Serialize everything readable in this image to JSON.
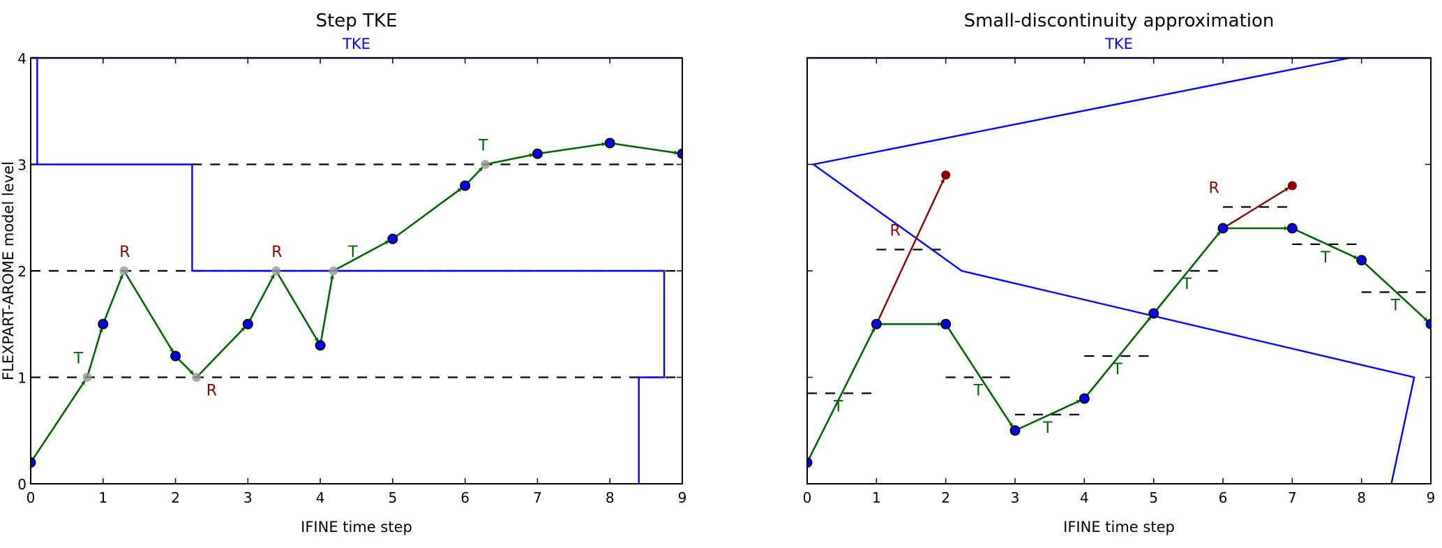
{
  "colors": {
    "tke": "#0000ff",
    "transport": "#006400",
    "random": "#8b0000",
    "point": "#0000ff",
    "crossing": "#999999",
    "level": "#000000"
  },
  "chart_data": [
    {
      "type": "line",
      "title": "Step TKE",
      "subtitle": "TKE",
      "xlabel": "IFINE time step",
      "ylabel": "FLEXPART-AROME model level",
      "xlim": [
        0,
        9
      ],
      "ylim": [
        0,
        4
      ],
      "xticks": [
        "0",
        "1",
        "2",
        "3",
        "4",
        "5",
        "6",
        "7",
        "8",
        "9"
      ],
      "yticks": [
        "0",
        "1",
        "2",
        "3",
        "4"
      ],
      "show_ytick_labels": true,
      "tke_lines": [
        [
          [
            8.4,
            0
          ],
          [
            8.4,
            1
          ],
          [
            8.75,
            1
          ],
          [
            8.75,
            2
          ],
          [
            2.23,
            2
          ],
          [
            2.23,
            3
          ],
          [
            0,
            3
          ]
        ],
        [
          [
            0.09,
            3
          ],
          [
            0.09,
            4
          ],
          [
            0,
            4
          ]
        ],
        [
          [
            0,
            4
          ],
          [
            9,
            4
          ]
        ]
      ],
      "level_lines": [
        {
          "y": 1,
          "x": [
            0,
            9
          ]
        },
        {
          "y": 2,
          "x": [
            0,
            9
          ]
        },
        {
          "y": 3,
          "x": [
            2.23,
            9
          ]
        }
      ],
      "path": [
        {
          "x": 0,
          "y": 0.2,
          "kind": "step"
        },
        {
          "x": 0.78,
          "y": 1,
          "kind": "crossing"
        },
        {
          "x": 1,
          "y": 1.5,
          "kind": "step"
        },
        {
          "x": 1.29,
          "y": 2,
          "kind": "crossing"
        },
        {
          "x": 2,
          "y": 1.2,
          "kind": "step"
        },
        {
          "x": 2.29,
          "y": 1,
          "kind": "crossing"
        },
        {
          "x": 3,
          "y": 1.5,
          "kind": "step"
        },
        {
          "x": 3.39,
          "y": 2,
          "kind": "crossing"
        },
        {
          "x": 4,
          "y": 1.3,
          "kind": "step"
        },
        {
          "x": 4.18,
          "y": 2,
          "kind": "crossing"
        },
        {
          "x": 5,
          "y": 2.3,
          "kind": "step"
        },
        {
          "x": 6,
          "y": 2.8,
          "kind": "step"
        },
        {
          "x": 6.28,
          "y": 3,
          "kind": "crossing"
        },
        {
          "x": 7,
          "y": 3.1,
          "kind": "step"
        },
        {
          "x": 8,
          "y": 3.2,
          "kind": "step"
        },
        {
          "x": 9,
          "y": 3.1,
          "kind": "step"
        }
      ],
      "random_arrows": [],
      "annotations": [
        {
          "text": "T",
          "x": 0.66,
          "y": 1.13,
          "type": "transport"
        },
        {
          "text": "R",
          "x": 1.3,
          "y": 2.13,
          "type": "random"
        },
        {
          "text": "R",
          "x": 2.5,
          "y": 0.83,
          "type": "random"
        },
        {
          "text": "R",
          "x": 3.4,
          "y": 2.13,
          "type": "random"
        },
        {
          "text": "T",
          "x": 4.45,
          "y": 2.13,
          "type": "transport"
        },
        {
          "text": "T",
          "x": 6.25,
          "y": 3.13,
          "type": "transport"
        }
      ]
    },
    {
      "type": "line",
      "title": "Small-discontinuity approximation",
      "subtitle": "TKE",
      "xlabel": "IFINE time step",
      "ylabel": "",
      "xlim": [
        0,
        9
      ],
      "ylim": [
        0,
        4
      ],
      "xticks": [
        "0",
        "1",
        "2",
        "3",
        "4",
        "5",
        "6",
        "7",
        "8",
        "9"
      ],
      "yticks": [
        "0",
        "1",
        "2",
        "3",
        "4"
      ],
      "show_ytick_labels": false,
      "tke_lines": [
        [
          [
            7.83,
            4
          ],
          [
            0.09,
            3
          ],
          [
            2.23,
            2
          ],
          [
            8.76,
            1
          ],
          [
            8.43,
            0
          ]
        ],
        [
          [
            0,
            4
          ],
          [
            9,
            4
          ]
        ]
      ],
      "level_lines": [
        {
          "y": 0.85,
          "x": [
            0,
            1
          ]
        },
        {
          "y": 2.2,
          "x": [
            1,
            2
          ]
        },
        {
          "y": 1.0,
          "x": [
            2,
            3
          ]
        },
        {
          "y": 0.65,
          "x": [
            3,
            4
          ]
        },
        {
          "y": 1.2,
          "x": [
            4,
            5
          ]
        },
        {
          "y": 2.0,
          "x": [
            5,
            6
          ]
        },
        {
          "y": 2.6,
          "x": [
            6,
            7
          ]
        },
        {
          "y": 2.25,
          "x": [
            7,
            8
          ]
        },
        {
          "y": 1.8,
          "x": [
            8,
            9
          ]
        }
      ],
      "path": [
        {
          "x": 0,
          "y": 0.2,
          "kind": "step"
        },
        {
          "x": 1,
          "y": 1.5,
          "kind": "step"
        },
        {
          "x": 2,
          "y": 1.5,
          "kind": "step"
        },
        {
          "x": 3,
          "y": 0.5,
          "kind": "step"
        },
        {
          "x": 4,
          "y": 0.8,
          "kind": "step"
        },
        {
          "x": 5,
          "y": 1.6,
          "kind": "step"
        },
        {
          "x": 6,
          "y": 2.4,
          "kind": "step"
        },
        {
          "x": 7,
          "y": 2.4,
          "kind": "step"
        },
        {
          "x": 8,
          "y": 2.1,
          "kind": "step"
        },
        {
          "x": 9,
          "y": 1.5,
          "kind": "step"
        }
      ],
      "random_arrows": [
        {
          "from": [
            1,
            1.5
          ],
          "to": [
            2,
            2.9
          ]
        },
        {
          "from": [
            6,
            2.4
          ],
          "to": [
            7,
            2.8
          ]
        }
      ],
      "annotations": [
        {
          "text": "T",
          "x": 0.45,
          "y": 0.68,
          "type": "transport"
        },
        {
          "text": "R",
          "x": 1.27,
          "y": 2.33,
          "type": "random"
        },
        {
          "text": "T",
          "x": 2.47,
          "y": 0.83,
          "type": "transport"
        },
        {
          "text": "T",
          "x": 3.47,
          "y": 0.48,
          "type": "transport"
        },
        {
          "text": "T",
          "x": 4.48,
          "y": 1.03,
          "type": "transport"
        },
        {
          "text": "T",
          "x": 5.48,
          "y": 1.83,
          "type": "transport"
        },
        {
          "text": "R",
          "x": 5.87,
          "y": 2.73,
          "type": "random"
        },
        {
          "text": "T",
          "x": 7.48,
          "y": 2.08,
          "type": "transport"
        },
        {
          "text": "T",
          "x": 8.49,
          "y": 1.63,
          "type": "transport"
        }
      ]
    }
  ]
}
